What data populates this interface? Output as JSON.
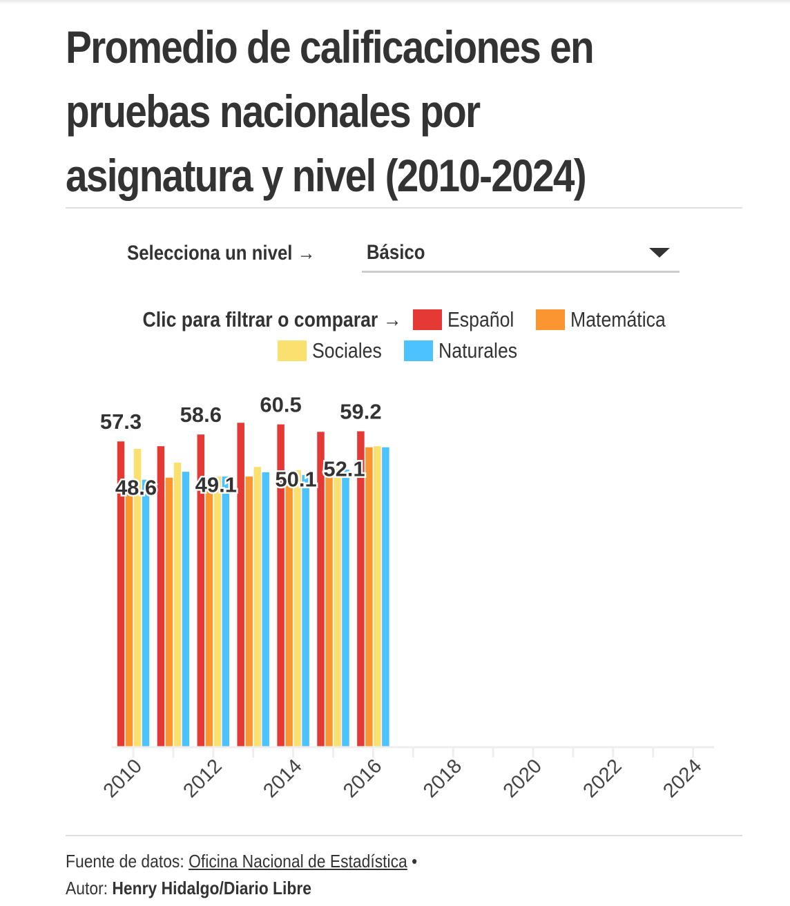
{
  "title": "Promedio de calificaciones en pruebas nacionales por asignatura y nivel (2010-2024)",
  "title_lines": [
    "Promedio de calificaciones en",
    "pruebas nacionales por",
    "asignatura y nivel (2010-2024)"
  ],
  "selector": {
    "label": "Selecciona un nivel →",
    "value": "Básico"
  },
  "legend": {
    "prompt": "Clic para filtrar o comparar →",
    "items": [
      {
        "label": "Español",
        "color": "#e53935"
      },
      {
        "label": "Matemática",
        "color": "#fb9531"
      },
      {
        "label": "Sociales",
        "color": "#fae06f"
      },
      {
        "label": "Naturales",
        "color": "#4cc3fc"
      }
    ]
  },
  "footer": {
    "source_prefix": "Fuente de datos: ",
    "source_link": "Oficina Nacional de Estadística",
    "separator": " •",
    "author_prefix": "Autor: ",
    "author": "Henry Hidalgo/Diario Libre"
  },
  "chart_data": {
    "type": "bar",
    "title": "Promedio de calificaciones en pruebas nacionales por asignatura y nivel (2010-2024)",
    "xlabel": "",
    "ylabel": "",
    "x_range": [
      2010,
      2024
    ],
    "x_tick_labels": [
      "2010",
      "2012",
      "2014",
      "2016",
      "2018",
      "2020",
      "2022",
      "2024"
    ],
    "ylim": [
      0,
      60.8
    ],
    "grid": false,
    "legend_position": "top",
    "categories": [
      "2010",
      "2011",
      "2012",
      "2013",
      "2014",
      "2015",
      "2016"
    ],
    "series": [
      {
        "name": "Español",
        "color": "#e53935",
        "values": [
          57.3,
          56.4,
          58.6,
          60.8,
          60.5,
          59.1,
          59.2
        ]
      },
      {
        "name": "Matemática",
        "color": "#fb9531",
        "values": [
          48.6,
          50.5,
          49.1,
          50.7,
          50.1,
          51.0,
          56.2
        ]
      },
      {
        "name": "Sociales",
        "color": "#fae06f",
        "values": [
          55.9,
          53.3,
          50.7,
          52.5,
          51.9,
          52.1,
          56.4
        ]
      },
      {
        "name": "Naturales",
        "color": "#4cc3fc",
        "values": [
          50.1,
          51.6,
          50.7,
          51.5,
          51.0,
          52.0,
          56.2
        ]
      }
    ],
    "data_labels": [
      {
        "year": "2010",
        "series": "Español",
        "text": "57.3"
      },
      {
        "year": "2010",
        "series": "Matemática",
        "text": "48.6"
      },
      {
        "year": "2012",
        "series": "Español",
        "text": "58.6"
      },
      {
        "year": "2012",
        "series": "Matemática",
        "text": "49.1"
      },
      {
        "year": "2014",
        "series": "Español",
        "text": "60.5"
      },
      {
        "year": "2014",
        "series": "Matemática",
        "text": "50.1"
      },
      {
        "year": "2016",
        "series": "Español",
        "text": "59.2"
      },
      {
        "year": "2015",
        "series": "Sociales",
        "text": "52.1"
      }
    ]
  }
}
